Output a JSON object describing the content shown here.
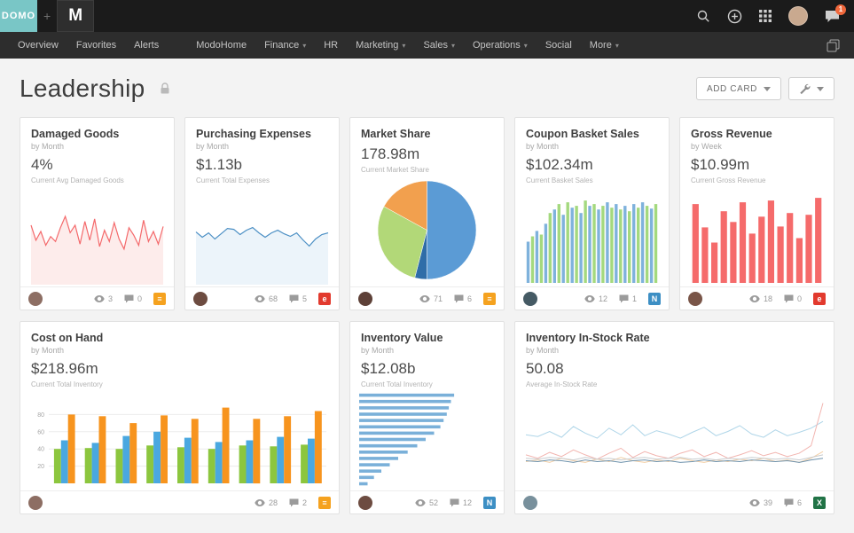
{
  "topbar": {
    "logo_text": "DOMO",
    "logo_bg": "#79c6c6",
    "plus": "+",
    "org_initial": "M",
    "chat_badge": "1",
    "avatar_color": "#c9a98f"
  },
  "nav": {
    "primary": [
      {
        "label": "Overview"
      },
      {
        "label": "Favorites"
      },
      {
        "label": "Alerts"
      }
    ],
    "secondary": [
      {
        "label": "ModoHome"
      },
      {
        "label": "Finance",
        "dropdown": true
      },
      {
        "label": "HR"
      },
      {
        "label": "Marketing",
        "dropdown": true
      },
      {
        "label": "Sales",
        "dropdown": true
      },
      {
        "label": "Operations",
        "dropdown": true
      },
      {
        "label": "Social"
      },
      {
        "label": "More",
        "dropdown": true
      }
    ]
  },
  "header": {
    "title": "Leadership",
    "add_card_label": "ADD CARD"
  },
  "cards": [
    {
      "title": "Damaged Goods",
      "subtitle": "by Month",
      "value": "4%",
      "caption": "Current Avg Damaged Goods",
      "views": "3",
      "comments": "0",
      "badge_glyph": "≡",
      "badge_color": "#f5a21f",
      "avatar_color": "#8d6e63",
      "chart_data": {
        "type": "line",
        "color": "#f4696b",
        "fill": "#fdeceb",
        "ylim": [
          0,
          7
        ],
        "values": [
          4.6,
          3.4,
          4.1,
          3.0,
          3.7,
          3.3,
          4.4,
          5.3,
          4.0,
          4.6,
          3.1,
          4.9,
          3.4,
          5.1,
          2.9,
          4.2,
          3.3,
          4.8,
          3.5,
          2.7,
          4.4,
          3.8,
          3.0,
          5.0,
          3.3,
          4.1,
          3.1,
          4.5
        ]
      }
    },
    {
      "title": "Purchasing Expenses",
      "subtitle": "by Month",
      "value": "$1.13b",
      "caption": "Current Total Expenses",
      "views": "68",
      "comments": "5",
      "badge_glyph": "e",
      "badge_color": "#e23a2e",
      "avatar_color": "#6d4c41",
      "chart_data": {
        "type": "line",
        "color": "#4b8fc4",
        "fill": "#ecf4fa",
        "ylim": [
          0,
          100
        ],
        "values": [
          58,
          52,
          57,
          50,
          56,
          62,
          61,
          55,
          60,
          63,
          57,
          52,
          57,
          60,
          56,
          53,
          57,
          49,
          42,
          50,
          55,
          57
        ]
      }
    },
    {
      "title": "Market Share",
      "subtitle": "",
      "value": "178.98m",
      "caption": "Current Market Share",
      "views": "71",
      "comments": "6",
      "badge_glyph": "≡",
      "badge_color": "#f5a21f",
      "avatar_color": "#5d4037",
      "chart_data": {
        "type": "pie",
        "slices": [
          {
            "value": 50,
            "color": "#5b9bd5"
          },
          {
            "value": 4,
            "color": "#2f6da8"
          },
          {
            "value": 29,
            "color": "#b2d878"
          },
          {
            "value": 17,
            "color": "#f2a04e"
          }
        ]
      }
    },
    {
      "title": "Coupon Basket Sales",
      "subtitle": "by Month",
      "value": "$102.34m",
      "caption": "Current Basket Sales",
      "views": "12",
      "comments": "1",
      "badge_glyph": "N",
      "badge_color": "#3d8fc4",
      "avatar_color": "#455a64",
      "chart_data": {
        "type": "bar",
        "bar_colors": [
          "#7fb2dc",
          "#a4d97e"
        ],
        "ylim": [
          0,
          100
        ],
        "values": [
          46,
          52,
          58,
          54,
          66,
          78,
          82,
          88,
          76,
          90,
          84,
          86,
          78,
          92,
          86,
          88,
          82,
          86,
          90,
          84,
          88,
          82,
          86,
          80,
          88,
          84,
          90,
          86,
          83,
          88
        ]
      }
    },
    {
      "title": "Gross Revenue",
      "subtitle": "by Week",
      "value": "$10.99m",
      "caption": "Current Gross Revenue",
      "views": "18",
      "comments": "0",
      "badge_glyph": "e",
      "badge_color": "#e23a2e",
      "avatar_color": "#795548",
      "chart_data": {
        "type": "bar",
        "bar_colors": [
          "#f56b6b"
        ],
        "ylim": [
          0,
          100
        ],
        "values": [
          88,
          62,
          45,
          80,
          68,
          90,
          55,
          74,
          92,
          63,
          78,
          50,
          76,
          95
        ]
      }
    },
    {
      "title": "Cost on Hand",
      "subtitle": "by Month",
      "value": "$218.96m",
      "caption": "Current Total Inventory",
      "views": "28",
      "comments": "2",
      "badge_glyph": "≡",
      "badge_color": "#f5a21f",
      "avatar_color": "#8d6e63",
      "chart_data": {
        "type": "groupedbar",
        "ylim": [
          0,
          100
        ],
        "yticks": [
          20,
          40,
          60,
          80
        ],
        "series": [
          {
            "name": "series-green",
            "color": "#8cc63e",
            "values": [
              40,
              41,
              40,
              44,
              42,
              40,
              44,
              43,
              45
            ]
          },
          {
            "name": "series-blue",
            "color": "#4aa8e0",
            "values": [
              50,
              47,
              55,
              60,
              53,
              48,
              50,
              54,
              52
            ]
          },
          {
            "name": "series-orange",
            "color": "#f7941e",
            "values": [
              80,
              78,
              70,
              79,
              75,
              88,
              75,
              78,
              84
            ]
          }
        ]
      }
    },
    {
      "title": "Inventory Value",
      "subtitle": "by Month",
      "value": "$12.08b",
      "caption": "Current Total Inventory",
      "views": "52",
      "comments": "12",
      "badge_glyph": "N",
      "badge_color": "#3d8fc4",
      "avatar_color": "#6d4c41",
      "chart_data": {
        "type": "hbar",
        "color": "#7ab0d9",
        "ylim": [
          0,
          100
        ],
        "values": [
          90,
          87,
          85,
          83,
          80,
          77,
          71,
          63,
          55,
          46,
          37,
          29,
          21,
          14,
          8
        ]
      }
    },
    {
      "title": "Inventory In-Stock Rate",
      "subtitle": "by Month",
      "value": "50.08",
      "caption": "Average In-Stock Rate",
      "views": "39",
      "comments": "6",
      "badge_glyph": "X",
      "badge_color": "#217346",
      "avatar_color": "#78909c",
      "chart_data": {
        "type": "multiline",
        "ylim": [
          0,
          105
        ],
        "series": [
          {
            "name": "line-lightblue",
            "color": "#aed5e8",
            "values": [
              58,
              56,
              62,
              55,
              68,
              60,
              54,
              66,
              58,
              70,
              57,
              63,
              59,
              54,
              61,
              67,
              57,
              62,
              69,
              59,
              55,
              64,
              57,
              61,
              66,
              74
            ]
          },
          {
            "name": "line-salmon",
            "color": "#f2b5b0",
            "values": [
              34,
              30,
              37,
              32,
              40,
              34,
              29,
              36,
              42,
              31,
              38,
              33,
              30,
              36,
              40,
              32,
              37,
              30,
              34,
              39,
              33,
              37,
              32,
              36,
              45,
              96
            ]
          },
          {
            "name": "line-peach",
            "color": "#f3cfa6",
            "values": [
              26,
              28,
              25,
              30,
              27,
              25,
              29,
              26,
              31,
              27,
              25,
              28,
              26,
              30,
              27,
              25,
              28,
              26,
              29,
              27,
              30,
              26,
              28,
              25,
              30,
              38
            ]
          },
          {
            "name": "line-gray",
            "color": "#c9ccce",
            "values": [
              30,
              29,
              31,
              30,
              28,
              31,
              29,
              30,
              28,
              30,
              31,
              29,
              30,
              31,
              29,
              30,
              28,
              30,
              29,
              31,
              30,
              29,
              30,
              28,
              31,
              34
            ]
          },
          {
            "name": "line-steel",
            "color": "#6f93ad",
            "values": [
              27,
              26,
              28,
              27,
              25,
              28,
              26,
              27,
              25,
              27,
              28,
              26,
              27,
              25,
              26,
              28,
              26,
              27,
              26,
              28,
              27,
              26,
              27,
              25,
              28,
              30
            ]
          }
        ]
      }
    }
  ]
}
